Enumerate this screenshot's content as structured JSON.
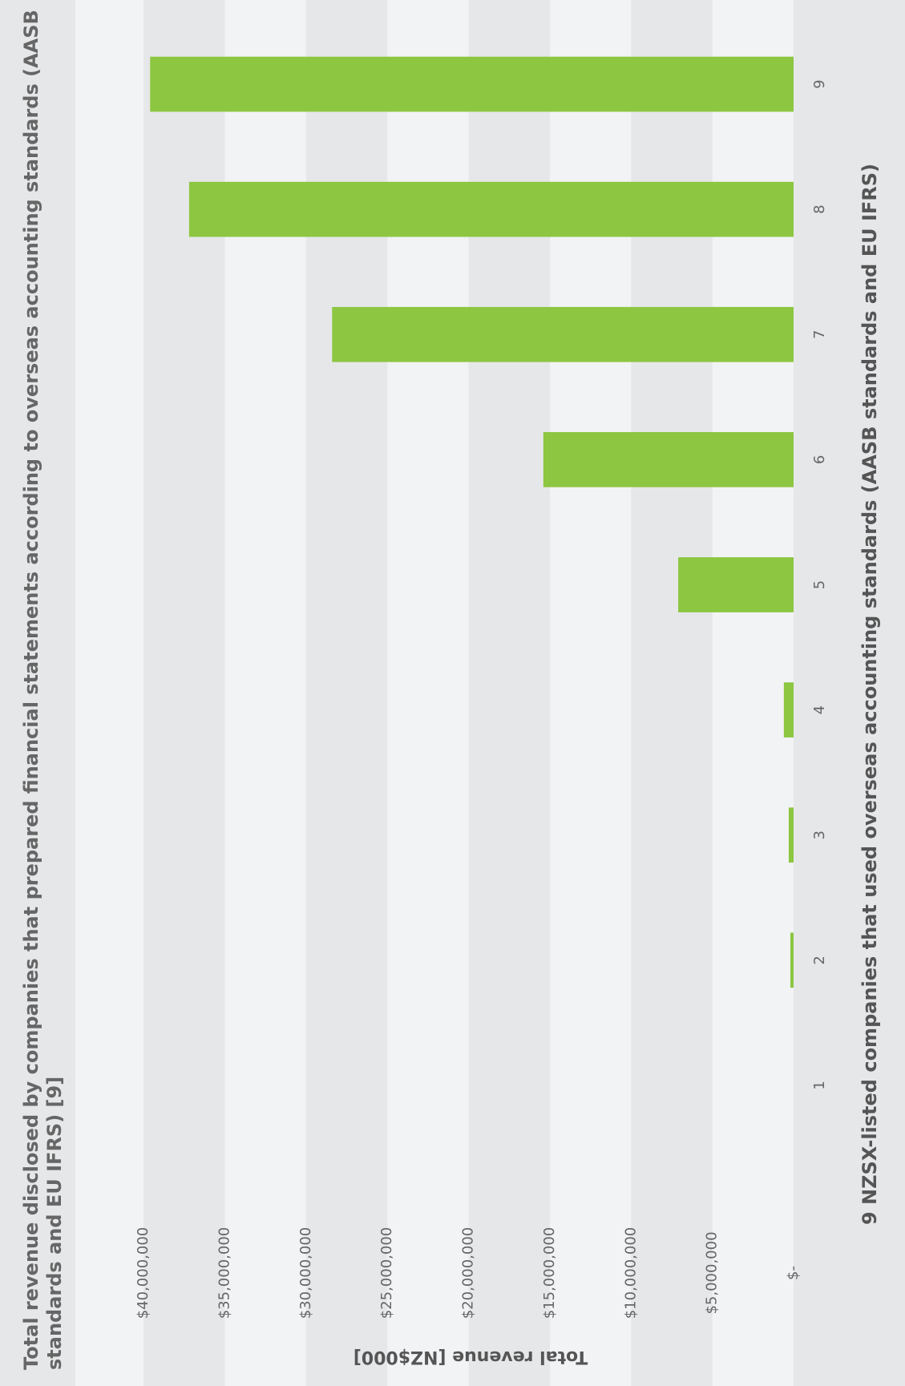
{
  "chart_data": {
    "type": "bar",
    "title": "Total revenue disclosed by companies that prepared financial statements according to overseas accounting standards (AASB standards and EU IFRS) [9]",
    "x_label": "9 NZSX-listed companies that used overseas accounting standards (AASB standards and EU IFRS)",
    "y_label": "Total revenue [NZ$000]",
    "categories": [
      "1",
      "2",
      "3",
      "4",
      "5",
      "6",
      "7",
      "8",
      "9"
    ],
    "values": [
      0,
      200000,
      300000,
      600000,
      7100000,
      15400000,
      28400000,
      37200000,
      39600000
    ],
    "color": "#8dc641",
    "ylim": [
      0,
      44200000
    ],
    "yticks": [
      {
        "value": 0,
        "label": "$-"
      },
      {
        "value": 5000000,
        "label": "$5,000,000"
      },
      {
        "value": 10000000,
        "label": "$10,000,000"
      },
      {
        "value": 15000000,
        "label": "$15,000,000"
      },
      {
        "value": 20000000,
        "label": "$20,000,000"
      },
      {
        "value": 25000000,
        "label": "$25,000,000"
      },
      {
        "value": 30000000,
        "label": "$30,000,000"
      },
      {
        "value": 35000000,
        "label": "$35,000,000"
      },
      {
        "value": 40000000,
        "label": "$40,000,000"
      }
    ],
    "grid": "bands"
  }
}
